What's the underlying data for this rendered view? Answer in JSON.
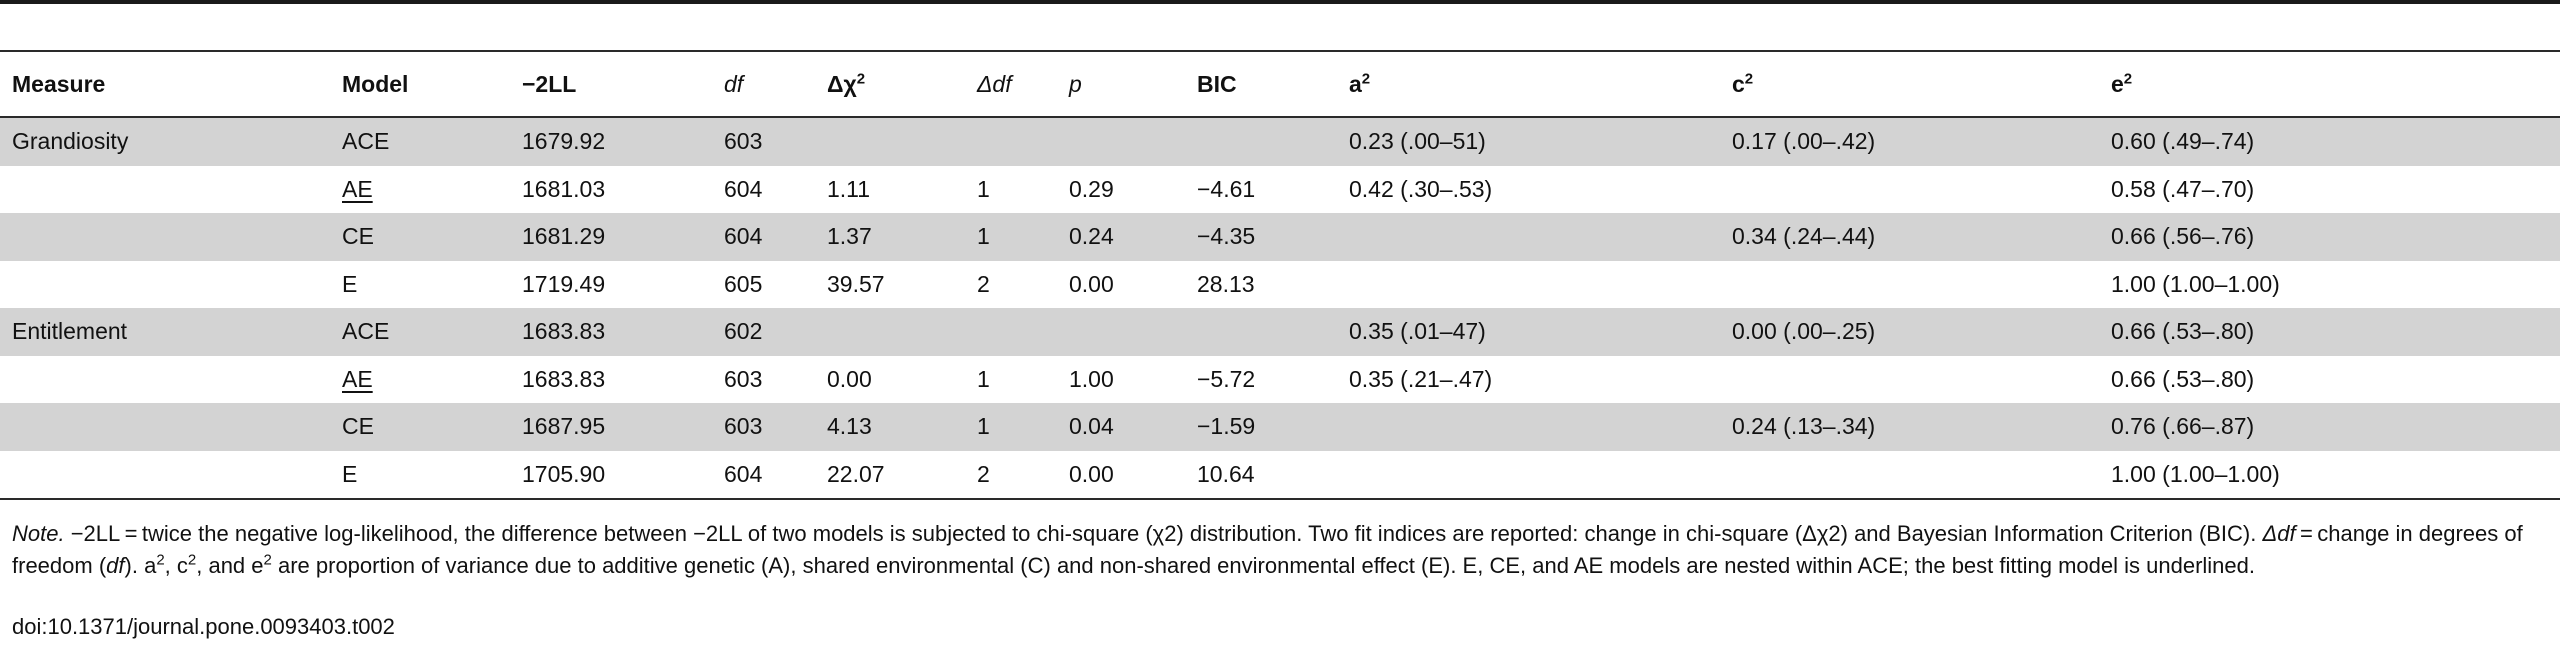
{
  "headers": {
    "measure": "Measure",
    "model": "Model",
    "neg2ll": "−2LL",
    "df": "df",
    "dchi": "Δχ",
    "dchi_sup": "2",
    "ddf": "Δdf",
    "p": "p",
    "bic": "BIC",
    "a2": "a",
    "c2": "c",
    "e2": "e",
    "sup2": "2"
  },
  "rows": [
    {
      "measure": "Grandiosity",
      "model": "ACE",
      "underline": false,
      "neg2ll": "1679.92",
      "df": "603",
      "dchi": "",
      "ddf": "",
      "p": "",
      "bic": "",
      "a2": "0.23 (.00–51)",
      "c2": "0.17 (.00–.42)",
      "e2": "0.60 (.49–.74)"
    },
    {
      "measure": "",
      "model": "AE",
      "underline": true,
      "neg2ll": "1681.03",
      "df": "604",
      "dchi": "1.11",
      "ddf": "1",
      "p": "0.29",
      "bic": "−4.61",
      "a2": "0.42 (.30–.53)",
      "c2": "",
      "e2": "0.58 (.47–.70)"
    },
    {
      "measure": "",
      "model": "CE",
      "underline": false,
      "neg2ll": "1681.29",
      "df": "604",
      "dchi": "1.37",
      "ddf": "1",
      "p": "0.24",
      "bic": "−4.35",
      "a2": "",
      "c2": "0.34 (.24–.44)",
      "e2": "0.66 (.56–.76)"
    },
    {
      "measure": "",
      "model": "E",
      "underline": false,
      "neg2ll": "1719.49",
      "df": "605",
      "dchi": "39.57",
      "ddf": "2",
      "p": "0.00",
      "bic": "28.13",
      "a2": "",
      "c2": "",
      "e2": "1.00 (1.00–1.00)"
    },
    {
      "measure": "Entitlement",
      "model": "ACE",
      "underline": false,
      "neg2ll": "1683.83",
      "df": "602",
      "dchi": "",
      "ddf": "",
      "p": "",
      "bic": "",
      "a2": "0.35 (.01–47)",
      "c2": "0.00 (.00–.25)",
      "e2": "0.66 (.53–.80)"
    },
    {
      "measure": "",
      "model": "AE",
      "underline": true,
      "neg2ll": "1683.83",
      "df": "603",
      "dchi": "0.00",
      "ddf": "1",
      "p": "1.00",
      "bic": "−5.72",
      "a2": "0.35 (.21–.47)",
      "c2": "",
      "e2": "0.66 (.53–.80)"
    },
    {
      "measure": "",
      "model": "CE",
      "underline": false,
      "neg2ll": "1687.95",
      "df": "603",
      "dchi": "4.13",
      "ddf": "1",
      "p": "0.04",
      "bic": "−1.59",
      "a2": "",
      "c2": "0.24 (.13–.34)",
      "e2": "0.76 (.66–.87)"
    },
    {
      "measure": "",
      "model": "E",
      "underline": false,
      "neg2ll": "1705.90",
      "df": "604",
      "dchi": "22.07",
      "ddf": "2",
      "p": "0.00",
      "bic": "10.64",
      "a2": "",
      "c2": "",
      "e2": "1.00 (1.00–1.00)"
    }
  ],
  "note": {
    "label": "Note.",
    "p1": " −2LL = twice the negative log-likelihood, the difference between −2LL of two models is subjected to chi-square (χ2) distribution. Two fit indices are reported: change in chi-square (Δχ2) and Bayesian Information Criterion (BIC). ",
    "ddf": "Δdf",
    "p2": " = change in degrees of freedom (",
    "df": "df",
    "p3": "). a",
    "p4": ", c",
    "p5": ", and e",
    "p6": " are proportion of variance due to additive genetic (A), shared environmental (C) and non-shared environmental effect (E). E, CE, and AE models are nested within ACE; the best fitting model is underlined.",
    "sup": "2"
  },
  "doi": "doi:10.1371/journal.pone.0093403.t002"
}
